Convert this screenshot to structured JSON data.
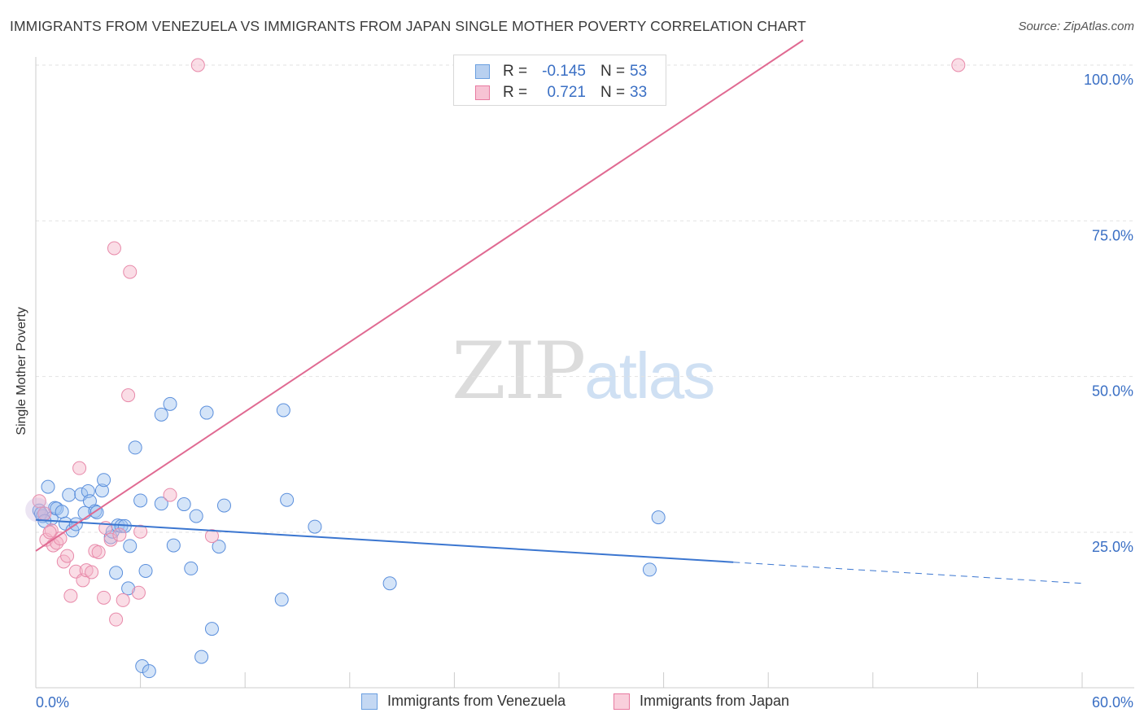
{
  "header": {
    "title": "IMMIGRANTS FROM VENEZUELA VS IMMIGRANTS FROM JAPAN SINGLE MOTHER POVERTY CORRELATION CHART",
    "source": "Source: ZipAtlas.com"
  },
  "watermark": {
    "zip": "ZIP",
    "atlas": "atlas"
  },
  "legend": {
    "venezuela": {
      "r_label": "R =",
      "r_value": "-0.145",
      "n_label": "N =",
      "n_value": "53",
      "color": "#6a9fe0",
      "fill": "#b8d0f0"
    },
    "japan": {
      "r_label": "R =",
      "r_value": "0.721",
      "n_label": "N =",
      "n_value": "33",
      "color": "#e87aa0",
      "fill": "#f7c3d4"
    }
  },
  "bottom_legend": {
    "venezuela": "Immigrants from Venezuela",
    "japan": "Immigrants from Japan"
  },
  "chart_data": {
    "type": "scatter",
    "title": "IMMIGRANTS FROM VENEZUELA VS IMMIGRANTS FROM JAPAN SINGLE MOTHER POVERTY CORRELATION CHART",
    "xlabel": "",
    "ylabel": "Single Mother Poverty",
    "xlim": [
      0,
      60
    ],
    "ylim": [
      0,
      105
    ],
    "x_tick_labels": [
      "0.0%",
      "60.0%"
    ],
    "y_ticks": [
      25,
      50,
      75,
      100
    ],
    "y_tick_labels": [
      "25.0%",
      "50.0%",
      "75.0%",
      "100.0%"
    ],
    "grid": true,
    "series": [
      {
        "name": "Immigrants from Venezuela",
        "color": "#3b76d0",
        "fill": "rgba(160,195,240,0.45)",
        "stroke": "#5b8fdc",
        "trend": {
          "x0": 0,
          "y0": 27.0,
          "x1": 40,
          "y1": 20.2,
          "dash_to_x": 60,
          "dash_to_y": 16.8
        },
        "points": [
          [
            0.2,
            28.5
          ],
          [
            0.4,
            27.6
          ],
          [
            0.7,
            32.3
          ],
          [
            0.9,
            27.2
          ],
          [
            1.1,
            28.9
          ],
          [
            1.2,
            28.8
          ],
          [
            1.5,
            28.3
          ],
          [
            1.7,
            26.4
          ],
          [
            1.9,
            31.0
          ],
          [
            2.1,
            25.3
          ],
          [
            2.3,
            26.3
          ],
          [
            2.6,
            31.1
          ],
          [
            2.8,
            28.1
          ],
          [
            3.0,
            31.6
          ],
          [
            3.1,
            30.0
          ],
          [
            3.4,
            28.4
          ],
          [
            3.5,
            28.2
          ],
          [
            3.8,
            31.7
          ],
          [
            3.9,
            33.4
          ],
          [
            4.3,
            24.2
          ],
          [
            4.4,
            25.1
          ],
          [
            4.6,
            18.5
          ],
          [
            4.7,
            26.1
          ],
          [
            4.9,
            26.0
          ],
          [
            5.1,
            26.0
          ],
          [
            5.3,
            16.0
          ],
          [
            5.4,
            22.8
          ],
          [
            5.7,
            38.6
          ],
          [
            6.0,
            30.1
          ],
          [
            6.1,
            3.5
          ],
          [
            6.3,
            18.8
          ],
          [
            6.5,
            2.7
          ],
          [
            7.2,
            29.6
          ],
          [
            7.2,
            43.9
          ],
          [
            7.7,
            45.6
          ],
          [
            7.9,
            22.9
          ],
          [
            8.5,
            29.5
          ],
          [
            8.9,
            19.2
          ],
          [
            9.2,
            27.6
          ],
          [
            9.5,
            5.0
          ],
          [
            9.8,
            44.2
          ],
          [
            10.1,
            9.5
          ],
          [
            10.5,
            22.7
          ],
          [
            10.8,
            29.3
          ],
          [
            14.1,
            14.2
          ],
          [
            14.2,
            44.6
          ],
          [
            14.4,
            30.2
          ],
          [
            16.0,
            25.9
          ],
          [
            20.3,
            16.8
          ],
          [
            35.2,
            19.0
          ],
          [
            35.7,
            27.4
          ],
          [
            0.3,
            28.0
          ],
          [
            0.5,
            26.8
          ]
        ]
      },
      {
        "name": "Immigrants from Japan",
        "color": "#e06a92",
        "fill": "rgba(245,180,200,0.45)",
        "stroke": "#e88aaa",
        "trend": {
          "x0": 0,
          "y0": 22.0,
          "x1": 44,
          "y1": 104
        },
        "points": [
          [
            0.2,
            30.0
          ],
          [
            0.5,
            28.0
          ],
          [
            0.6,
            23.8
          ],
          [
            0.9,
            25.3
          ],
          [
            1.0,
            22.9
          ],
          [
            1.2,
            23.3
          ],
          [
            1.4,
            24.0
          ],
          [
            1.6,
            20.3
          ],
          [
            1.8,
            21.2
          ],
          [
            2.0,
            14.8
          ],
          [
            2.3,
            18.7
          ],
          [
            2.5,
            35.3
          ],
          [
            2.7,
            17.3
          ],
          [
            2.9,
            18.9
          ],
          [
            3.2,
            18.6
          ],
          [
            3.4,
            22.0
          ],
          [
            3.6,
            21.8
          ],
          [
            3.9,
            14.5
          ],
          [
            4.0,
            25.7
          ],
          [
            4.3,
            23.8
          ],
          [
            4.5,
            70.6
          ],
          [
            4.6,
            11.0
          ],
          [
            4.8,
            24.6
          ],
          [
            5.0,
            14.1
          ],
          [
            5.3,
            47.0
          ],
          [
            5.4,
            66.8
          ],
          [
            5.9,
            15.3
          ],
          [
            6.0,
            25.1
          ],
          [
            7.7,
            31.0
          ],
          [
            9.3,
            100.0
          ],
          [
            10.1,
            24.4
          ],
          [
            52.9,
            100.0
          ],
          [
            0.8,
            25.0
          ]
        ]
      }
    ]
  }
}
